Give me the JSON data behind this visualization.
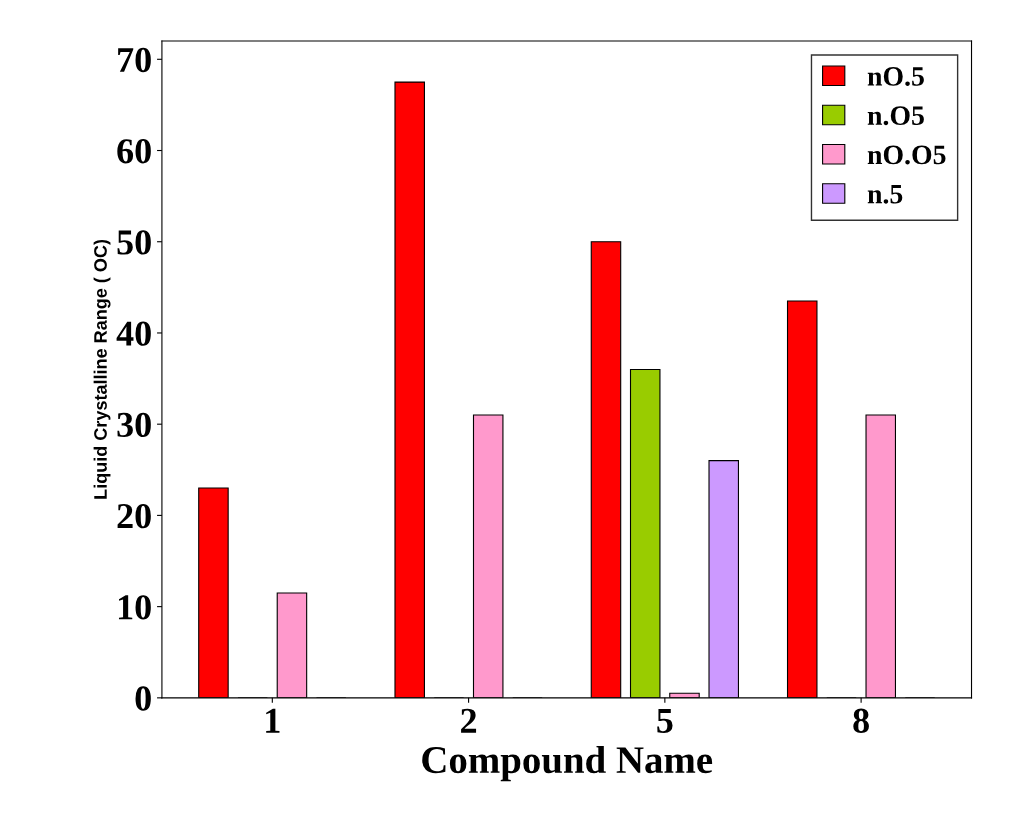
{
  "chart_data": {
    "type": "bar",
    "xlabel": "Compound Name",
    "ylabel": "Liquid Crystalline Range ( OC)",
    "categories": [
      "1",
      "2",
      "5",
      "8"
    ],
    "series": [
      {
        "name": "nO.5",
        "color": "#ff0000",
        "values": [
          23,
          67.5,
          50,
          43.5
        ]
      },
      {
        "name": "n.O5",
        "color": "#99cc00",
        "values": [
          0,
          0,
          36,
          0
        ]
      },
      {
        "name": "nO.O5",
        "color": "#ff99cc",
        "values": [
          11.5,
          31,
          0.5,
          31
        ]
      },
      {
        "name": "n.5",
        "color": "#cc99ff",
        "values": [
          0,
          0,
          26,
          0
        ]
      }
    ],
    "ylim": [
      0,
      72
    ],
    "yticks": [
      0,
      10,
      20,
      30,
      40,
      50,
      60,
      70
    ],
    "grid": false,
    "legend": "top right"
  }
}
